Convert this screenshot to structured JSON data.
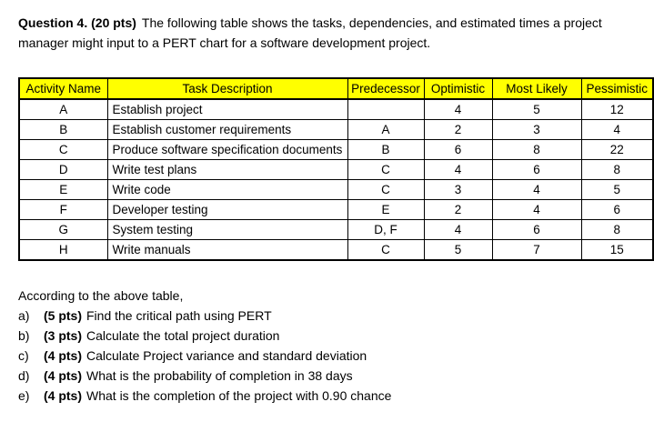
{
  "colors": {
    "page_background": "#FFFFFF",
    "table_header_background": "#FFFF00",
    "table_border": "#000000",
    "text": "#000000"
  },
  "question": {
    "label": "Question 4. (20 pts)",
    "text": "The following table shows the tasks, dependencies, and estimated times a project manager might input to a PERT chart for a software development project."
  },
  "table": {
    "columns": [
      "Activity Name",
      "Task Description",
      "Predecessor",
      "Optimistic",
      "Most Likely",
      "Pessimistic"
    ],
    "rows": [
      {
        "activity": "A",
        "description": "Establish project",
        "predecessor": "",
        "optimistic": "4",
        "most_likely": "5",
        "pessimistic": "12"
      },
      {
        "activity": "B",
        "description": "Establish customer requirements",
        "predecessor": "A",
        "optimistic": "2",
        "most_likely": "3",
        "pessimistic": "4"
      },
      {
        "activity": "C",
        "description": "Produce software specification documents",
        "predecessor": "B",
        "optimistic": "6",
        "most_likely": "8",
        "pessimistic": "22"
      },
      {
        "activity": "D",
        "description": "Write test plans",
        "predecessor": "C",
        "optimistic": "4",
        "most_likely": "6",
        "pessimistic": "8"
      },
      {
        "activity": "E",
        "description": "Write code",
        "predecessor": "C",
        "optimistic": "3",
        "most_likely": "4",
        "pessimistic": "5"
      },
      {
        "activity": "F",
        "description": "Developer testing",
        "predecessor": "E",
        "optimistic": "2",
        "most_likely": "4",
        "pessimistic": "6"
      },
      {
        "activity": "G",
        "description": "System testing",
        "predecessor": "D, F",
        "optimistic": "4",
        "most_likely": "6",
        "pessimistic": "8"
      },
      {
        "activity": "H",
        "description": "Write manuals",
        "predecessor": "C",
        "optimistic": "5",
        "most_likely": "7",
        "pessimistic": "15"
      }
    ]
  },
  "followup": {
    "intro": "According to the above table,",
    "items": [
      {
        "marker": "a)",
        "points": "(5 pts)",
        "text": "Find the critical path using PERT"
      },
      {
        "marker": "b)",
        "points": "(3 pts)",
        "text": "Calculate the total project duration"
      },
      {
        "marker": "c)",
        "points": "(4 pts)",
        "text": "Calculate Project variance and standard deviation"
      },
      {
        "marker": "d)",
        "points": "(4 pts)",
        "text": "What is the probability of completion in 38 days"
      },
      {
        "marker": "e)",
        "points": "(4 pts)",
        "text": "What is the completion of the project with 0.90 chance"
      }
    ]
  }
}
